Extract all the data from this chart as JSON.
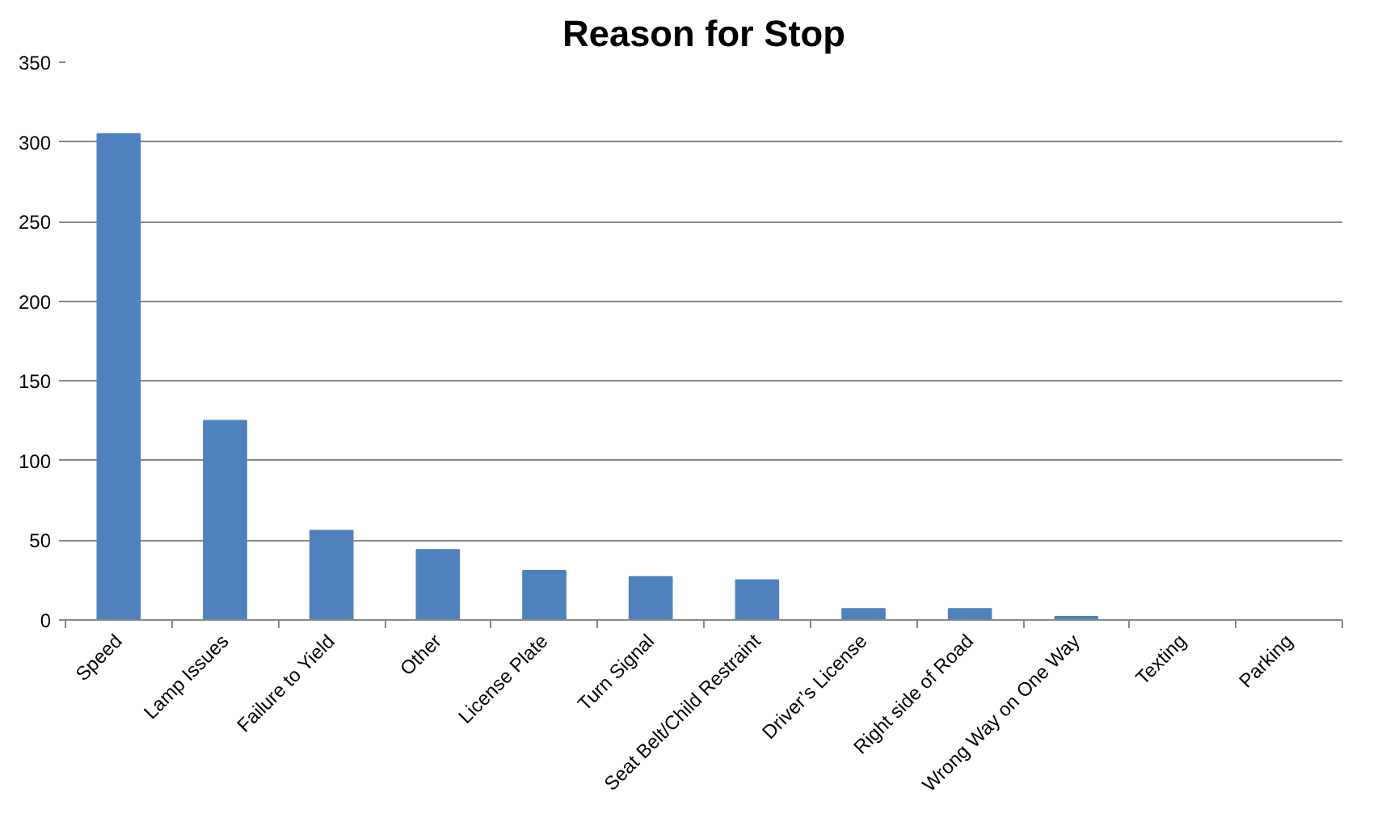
{
  "chart_data": {
    "type": "bar",
    "title": "Reason for Stop",
    "categories": [
      "Speed",
      "Lamp Issues",
      "Failure to Yield",
      "Other",
      "License Plate",
      "Turn Signal",
      "Seat Belt/Child Restraint",
      "Driver’s License",
      "Right side of Road",
      "Wrong Way on One Way",
      "Texting",
      "Parking"
    ],
    "values": [
      305,
      125,
      56,
      44,
      31,
      27,
      25,
      7,
      7,
      2,
      0,
      0
    ],
    "color": "#4f81bd",
    "ylim": [
      0,
      350
    ],
    "yticks": [
      0,
      50,
      100,
      150,
      200,
      250,
      300,
      350
    ],
    "grid": "y"
  }
}
